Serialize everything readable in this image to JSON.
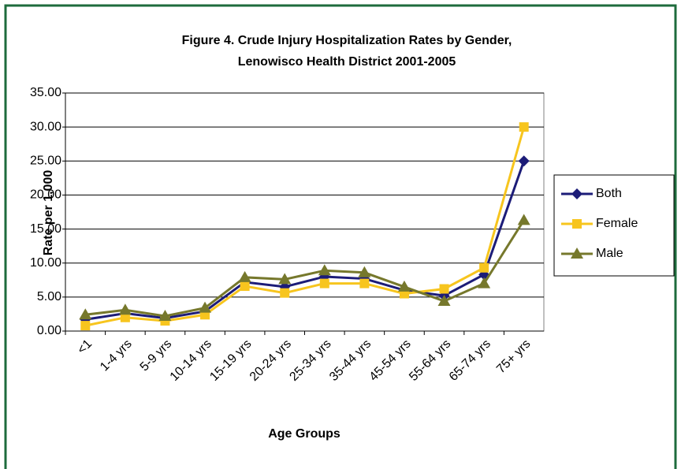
{
  "chart_data": {
    "type": "line",
    "title": "Figure 4. Crude Injury Hospitalization Rates by Gender,",
    "subtitle": "Lenowisco Health District 2001-2005",
    "x_label": "Age Groups",
    "y_label": "Rate per 1,000",
    "categories": [
      "<1",
      "1-4 yrs",
      "5-9 yrs",
      "10-14 yrs",
      "15-19 yrs",
      "20-24 yrs",
      "25-34 yrs",
      "35-44 yrs",
      "45-54 yrs",
      "55-64 yrs",
      "65-74 yrs",
      "75+ yrs"
    ],
    "series": [
      {
        "name": "Both",
        "color": "#1c1c78",
        "marker": "diamond",
        "values": [
          1.7,
          2.6,
          1.9,
          2.9,
          7.2,
          6.5,
          8.0,
          7.7,
          6.0,
          5.2,
          8.3,
          25.0
        ]
      },
      {
        "name": "Female",
        "color": "#f7c51e",
        "marker": "square",
        "values": [
          0.8,
          2.0,
          1.5,
          2.4,
          6.6,
          5.6,
          7.0,
          7.0,
          5.5,
          6.2,
          9.3,
          30.0
        ]
      },
      {
        "name": "Male",
        "color": "#76782c",
        "marker": "triangle",
        "values": [
          2.4,
          3.1,
          2.2,
          3.4,
          7.9,
          7.6,
          8.9,
          8.6,
          6.5,
          4.4,
          7.0,
          16.3
        ]
      }
    ],
    "ylim": [
      0,
      35
    ],
    "yticks": [
      {
        "value": 0,
        "label": "0.00"
      },
      {
        "value": 5,
        "label": "5.00"
      },
      {
        "value": 10,
        "label": "10.00"
      },
      {
        "value": 15,
        "label": "15.00"
      },
      {
        "value": 20,
        "label": "20.00"
      },
      {
        "value": 25,
        "label": "25.00"
      },
      {
        "value": 30,
        "label": "30.00"
      },
      {
        "value": 35,
        "label": "35.00"
      }
    ],
    "grid": true,
    "legend": "right"
  }
}
